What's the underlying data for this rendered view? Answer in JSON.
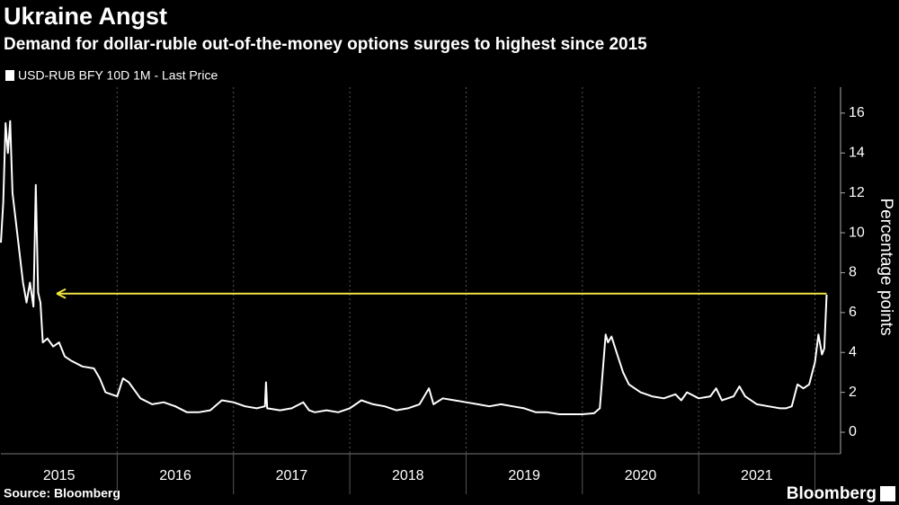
{
  "chart_data": {
    "type": "line",
    "title": "Ukraine Angst",
    "subtitle": "Demand for dollar-ruble out-of-the-money options surges to highest since 2015",
    "source": "Source: Bloomberg",
    "brand": "Bloomberg",
    "y_label": "Percentage points",
    "x": [
      2015.0,
      2015.02,
      2015.04,
      2015.06,
      2015.08,
      2015.1,
      2015.13,
      2015.16,
      2015.19,
      2015.22,
      2015.25,
      2015.28,
      2015.3,
      2015.32,
      2015.34,
      2015.36,
      2015.4,
      2015.45,
      2015.5,
      2015.55,
      2015.6,
      2015.7,
      2015.8,
      2015.85,
      2015.9,
      2016.0,
      2016.05,
      2016.1,
      2016.2,
      2016.3,
      2016.4,
      2016.5,
      2016.6,
      2016.7,
      2016.8,
      2016.9,
      2017.0,
      2017.1,
      2017.2,
      2017.27,
      2017.28,
      2017.29,
      2017.4,
      2017.5,
      2017.6,
      2017.65,
      2017.7,
      2017.8,
      2017.9,
      2018.0,
      2018.1,
      2018.2,
      2018.3,
      2018.4,
      2018.5,
      2018.6,
      2018.68,
      2018.72,
      2018.8,
      2018.9,
      2019.0,
      2019.1,
      2019.2,
      2019.3,
      2019.4,
      2019.5,
      2019.6,
      2019.7,
      2019.8,
      2019.9,
      2020.0,
      2020.1,
      2020.15,
      2020.2,
      2020.22,
      2020.25,
      2020.3,
      2020.35,
      2020.4,
      2020.5,
      2020.6,
      2020.7,
      2020.8,
      2020.85,
      2020.9,
      2021.0,
      2021.1,
      2021.15,
      2021.2,
      2021.3,
      2021.35,
      2021.4,
      2021.5,
      2021.6,
      2021.7,
      2021.75,
      2021.8,
      2021.85,
      2021.9,
      2021.95,
      2022.0,
      2022.03,
      2022.06,
      2022.08,
      2022.1
    ],
    "series": [
      {
        "name": "USD-RUB BFY 10D 1M - Last Price",
        "color": "#ffffff",
        "values": [
          9.5,
          11.5,
          15.5,
          14,
          15.6,
          12,
          10.5,
          9,
          7.5,
          6.5,
          7.5,
          6.3,
          12.4,
          7,
          6.5,
          4.5,
          4.7,
          4.3,
          4.5,
          3.8,
          3.6,
          3.3,
          3.2,
          2.7,
          2.0,
          1.8,
          2.7,
          2.5,
          1.7,
          1.4,
          1.5,
          1.3,
          1.0,
          1.0,
          1.1,
          1.6,
          1.5,
          1.3,
          1.2,
          1.3,
          2.5,
          1.2,
          1.1,
          1.2,
          1.5,
          1.1,
          1.0,
          1.1,
          1.0,
          1.2,
          1.6,
          1.4,
          1.3,
          1.1,
          1.2,
          1.4,
          2.2,
          1.4,
          1.7,
          1.6,
          1.5,
          1.4,
          1.3,
          1.4,
          1.3,
          1.2,
          1.0,
          1.0,
          0.9,
          0.9,
          0.9,
          0.95,
          1.2,
          4.9,
          4.5,
          4.8,
          3.9,
          3.0,
          2.4,
          2.0,
          1.8,
          1.7,
          1.9,
          1.6,
          2.0,
          1.7,
          1.8,
          2.2,
          1.6,
          1.8,
          2.3,
          1.8,
          1.4,
          1.3,
          1.2,
          1.2,
          1.3,
          2.4,
          2.2,
          2.4,
          3.5,
          4.9,
          3.9,
          4.2,
          6.9
        ]
      }
    ],
    "reference_arrow": {
      "value": 6.95,
      "x_from": 2022.1,
      "x_to": 2015.48,
      "color": "#f0e442"
    },
    "xlim": [
      2015.0,
      2022.22
    ],
    "xticks": [
      {
        "value": 2015.5,
        "label": "2015"
      },
      {
        "value": 2016.5,
        "label": "2016"
      },
      {
        "value": 2017.5,
        "label": "2017"
      },
      {
        "value": 2018.5,
        "label": "2018"
      },
      {
        "value": 2019.5,
        "label": "2019"
      },
      {
        "value": 2020.5,
        "label": "2020"
      },
      {
        "value": 2021.5,
        "label": "2021"
      }
    ],
    "xgrid": [
      2016,
      2017,
      2018,
      2019,
      2020,
      2021,
      2022
    ],
    "ylim": [
      -1.08,
      17.3
    ],
    "yticks": [
      0,
      2,
      4,
      6,
      8,
      10,
      12,
      14,
      16
    ]
  }
}
